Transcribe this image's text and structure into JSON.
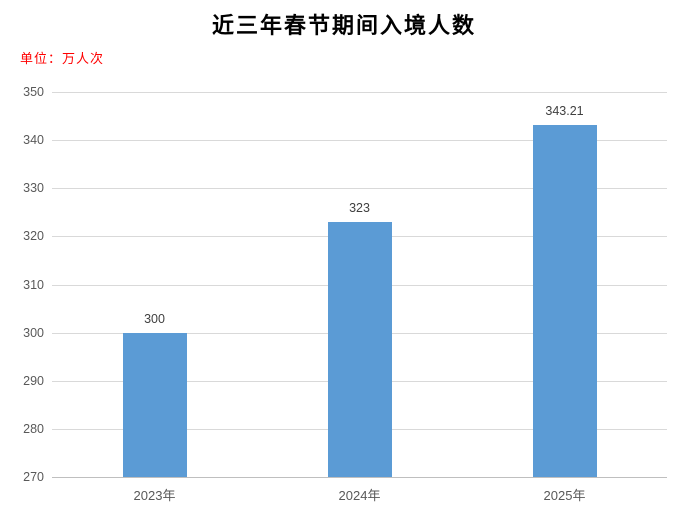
{
  "chart_data": {
    "type": "bar",
    "title": "近三年春节期间入境人数",
    "unit_label": "单位：万人次",
    "categories": [
      "2023年",
      "2024年",
      "2025年"
    ],
    "values": [
      300,
      323,
      343.21
    ],
    "value_labels": [
      "300",
      "323",
      "343.21"
    ],
    "yticks": [
      270,
      280,
      290,
      300,
      310,
      320,
      330,
      340,
      350
    ],
    "ylim": [
      270,
      350
    ],
    "grid": "horizontal",
    "legend": "none",
    "colors": {
      "bar": "#5B9BD5",
      "title_text": "#000000",
      "unit_label_text": "#FF0000",
      "axis_tick_text": "#595959",
      "value_label_text": "#404040",
      "gridline": "#D9D9D9",
      "axis_line": "#BFBFBF",
      "background": "#FFFFFF"
    }
  }
}
